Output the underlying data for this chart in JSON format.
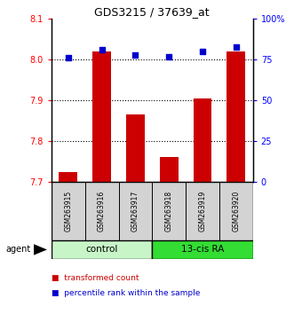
{
  "title": "GDS3215 / 37639_at",
  "samples": [
    "GSM263915",
    "GSM263916",
    "GSM263917",
    "GSM263918",
    "GSM263919",
    "GSM263920"
  ],
  "red_values": [
    7.725,
    8.02,
    7.865,
    7.762,
    7.905,
    8.02
  ],
  "blue_values": [
    76,
    81,
    78,
    76.5,
    80,
    83
  ],
  "ylim_left": [
    7.7,
    8.1
  ],
  "ylim_right": [
    0,
    100
  ],
  "yticks_left": [
    7.7,
    7.8,
    7.9,
    8.0,
    8.1
  ],
  "yticks_right": [
    0,
    25,
    50,
    75,
    100
  ],
  "ytick_labels_right": [
    "0",
    "25",
    "50",
    "75",
    "100%"
  ],
  "group_label": "agent",
  "control_color": "#c8f5c8",
  "ra_color": "#33dd33",
  "bar_color": "#CC0000",
  "dot_color": "#0000CC",
  "tick_label_bg": "#d3d3d3",
  "legend_red_label": "transformed count",
  "legend_blue_label": "percentile rank within the sample",
  "bar_width": 0.55
}
